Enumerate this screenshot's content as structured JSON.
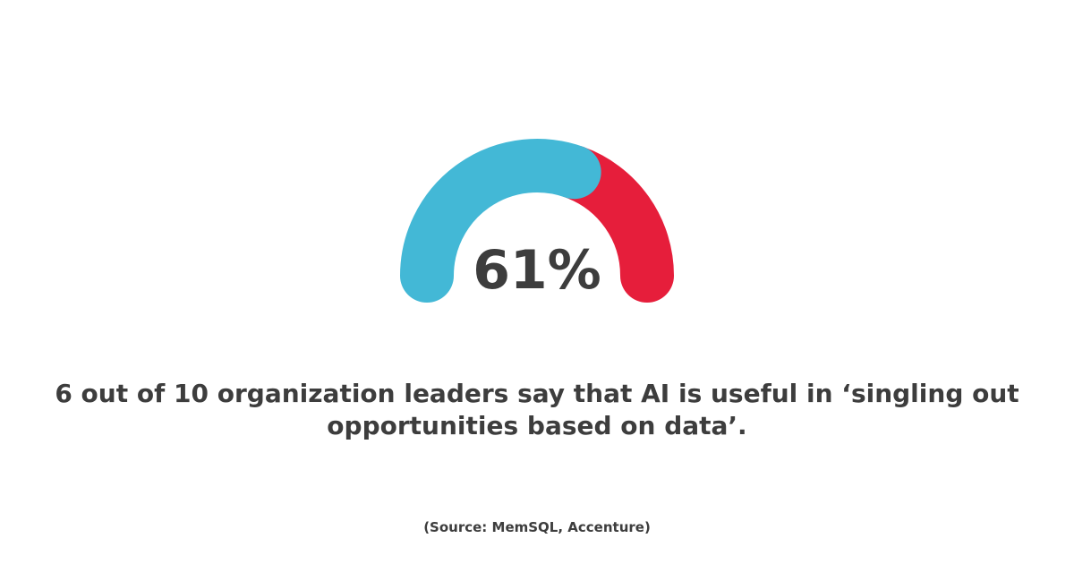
{
  "chart_data": {
    "type": "gauge",
    "value": 61,
    "value_label": "61%",
    "range": [
      0,
      100
    ],
    "segments": [
      {
        "value": 61,
        "color": "#43b8d6"
      },
      {
        "value": 39,
        "color": "#e61e3b"
      }
    ]
  },
  "statement": {
    "line1": "6 out of 10 organization leaders say that AI is useful in ‘singling out",
    "line2": "opportunities based on data’."
  },
  "source": "(Source: MemSQL, Accenture)",
  "colors": {
    "text": "#3d3d3d",
    "background": "#ffffff"
  }
}
